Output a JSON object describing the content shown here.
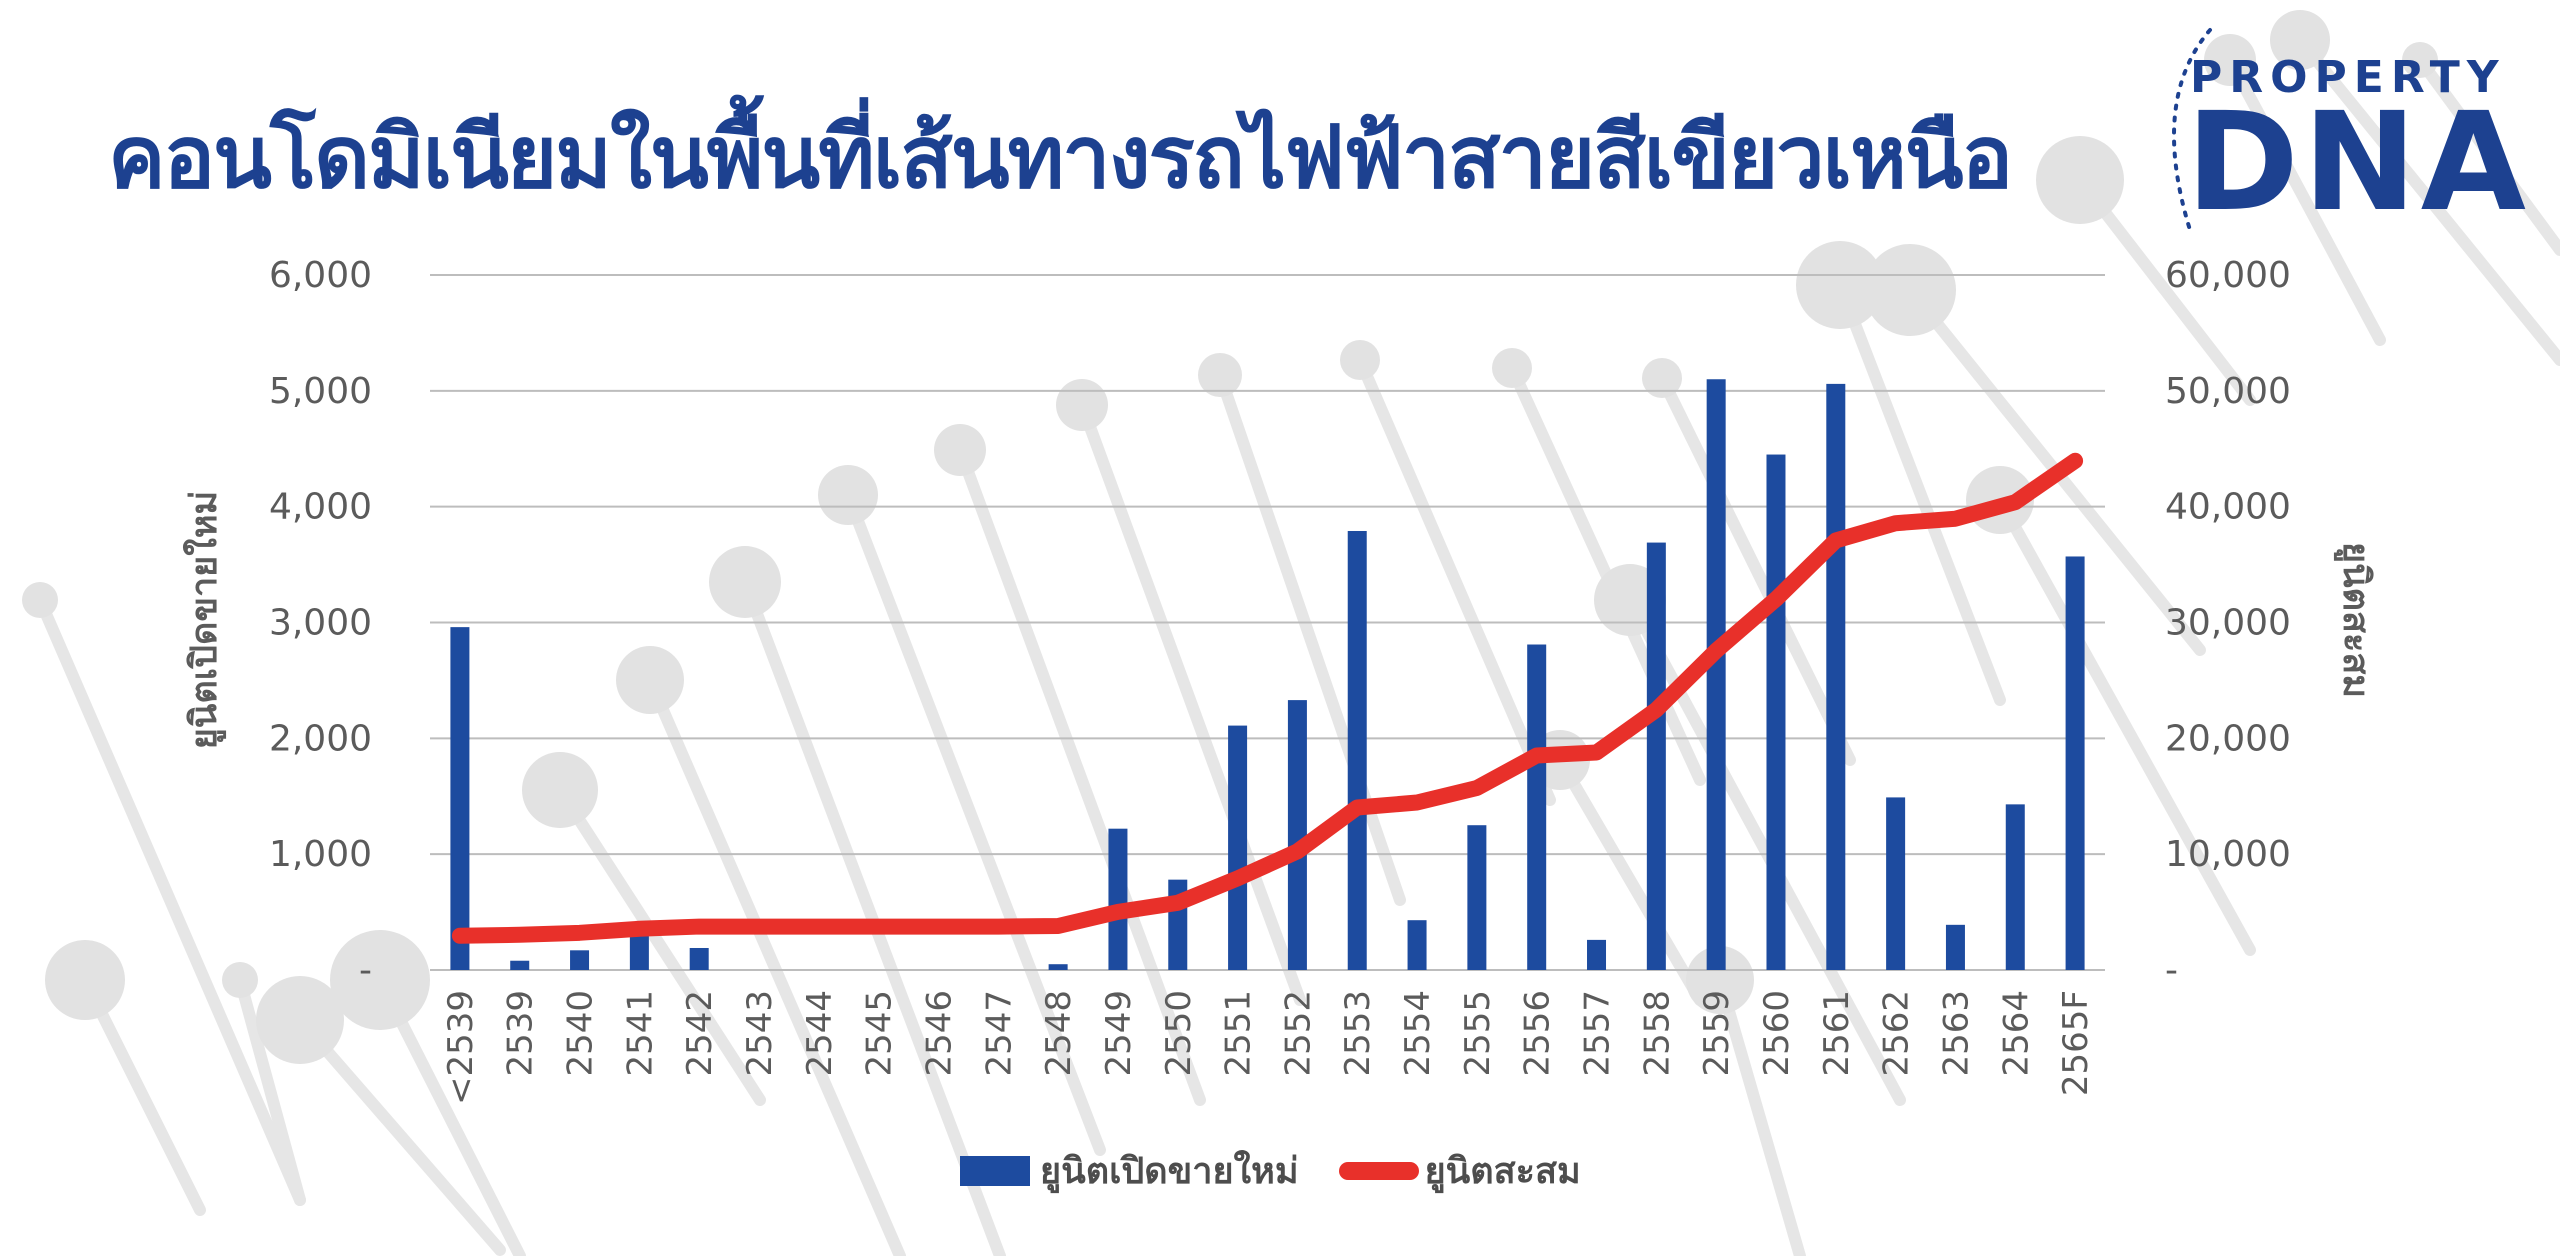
{
  "title": "คอนโดมิเนียมในพื้นที่เส้นทางรถไฟฟ้าสายสีเขียวเหนือ",
  "logo": {
    "top": "PROPERTY",
    "main": "DNA"
  },
  "colors": {
    "bar": "#1d4b9f",
    "line": "#e8302a",
    "title": "#1d4190",
    "grid": "#bdbdbd"
  },
  "chart_data": {
    "type": "bar",
    "categories": [
      "<2539",
      "2539",
      "2540",
      "2541",
      "2542",
      "2543",
      "2544",
      "2545",
      "2546",
      "2547",
      "2548",
      "2549",
      "2550",
      "2551",
      "2552",
      "2553",
      "2554",
      "2555",
      "2556",
      "2557",
      "2558",
      "2559",
      "2560",
      "2561",
      "2562",
      "2563",
      "2564",
      "2565F"
    ],
    "series": [
      {
        "name": "ยูนิตเปิดขายใหม่",
        "type": "bar",
        "axis": "left",
        "values": [
          2960,
          80,
          170,
          350,
          190,
          0,
          0,
          0,
          0,
          0,
          50,
          1220,
          780,
          2110,
          2330,
          3790,
          430,
          1250,
          2810,
          260,
          3690,
          5100,
          4450,
          5060,
          1490,
          390,
          1430,
          3570
        ]
      },
      {
        "name": "ยูนิตสะสม",
        "type": "line",
        "axis": "right",
        "values": [
          2960,
          3040,
          3210,
          3560,
          3750,
          3750,
          3750,
          3750,
          3750,
          3750,
          3800,
          5020,
          5800,
          7910,
          10240,
          14030,
          14460,
          15710,
          18520,
          18780,
          22470,
          27570,
          32020,
          37080,
          38570,
          38960,
          40390,
          43960
        ]
      }
    ],
    "left_axis": {
      "title": "ยูนิตเปิดขายใหม่",
      "ylim": [
        0,
        6000
      ],
      "ticks": [
        0,
        1000,
        2000,
        3000,
        4000,
        5000,
        6000
      ],
      "tick_labels": [
        "-",
        "1,000",
        "2,000",
        "3,000",
        "4,000",
        "5,000",
        "6,000"
      ]
    },
    "right_axis": {
      "title": "ยูนิตสะสม",
      "ylim": [
        0,
        60000
      ],
      "ticks": [
        0,
        10000,
        20000,
        30000,
        40000,
        50000,
        60000
      ],
      "tick_labels": [
        "-",
        "10,000",
        "20,000",
        "30,000",
        "40,000",
        "50,000",
        "60,000"
      ]
    },
    "grid": true,
    "legend": "bottom-center"
  }
}
